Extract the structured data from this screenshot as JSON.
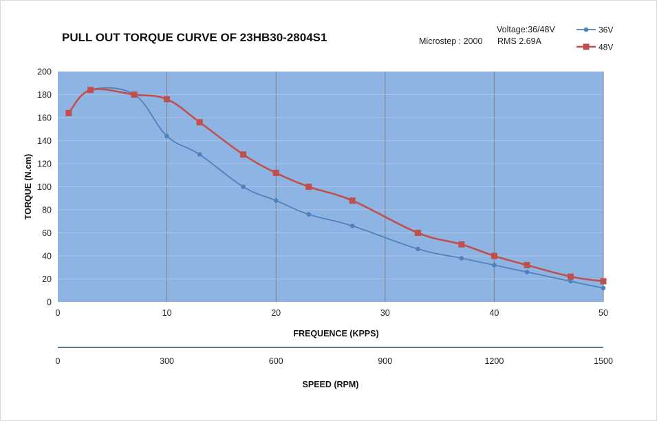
{
  "chart_data": {
    "type": "line",
    "title": "PULL OUT TORQUE CURVE OF 23HB30-2804S1",
    "annotations": {
      "voltage": "Voltage:36/48V",
      "microstep": "Microstep : 2000",
      "rms": "RMS 2.69A"
    },
    "xlabel": "FREQUENCE (KPPS)",
    "ylabel": "TORQUE (N.cm)",
    "xlim": [
      0,
      50
    ],
    "ylim": [
      0,
      200
    ],
    "x_ticks": [
      "0",
      "10",
      "20",
      "30",
      "40",
      "50"
    ],
    "y_ticks": [
      "0",
      "20",
      "40",
      "60",
      "80",
      "100",
      "120",
      "140",
      "160",
      "180",
      "200"
    ],
    "secondary_axis": {
      "label": "SPEED (RPM)",
      "ticks": [
        "0",
        "300",
        "600",
        "900",
        "1200",
        "1500"
      ]
    },
    "grid": "vertical",
    "legend_position": "top-right",
    "background_color": "#8eb4e3",
    "series": [
      {
        "name": "36V",
        "color": "#4f81bd",
        "marker": "circle",
        "points": [
          [
            1,
            164
          ],
          [
            3,
            184
          ],
          [
            7,
            180
          ],
          [
            10,
            144
          ],
          [
            13,
            128
          ],
          [
            17,
            100
          ],
          [
            20,
            88
          ],
          [
            23,
            76
          ],
          [
            27,
            66
          ],
          [
            33,
            46
          ],
          [
            37,
            38
          ],
          [
            40,
            32
          ],
          [
            43,
            26
          ],
          [
            47,
            18
          ],
          [
            50,
            12
          ]
        ]
      },
      {
        "name": "48V",
        "color": "#c0504d",
        "marker": "square",
        "points": [
          [
            1,
            164
          ],
          [
            3,
            184
          ],
          [
            7,
            180
          ],
          [
            10,
            176
          ],
          [
            13,
            156
          ],
          [
            17,
            128
          ],
          [
            20,
            112
          ],
          [
            23,
            100
          ],
          [
            27,
            88
          ],
          [
            33,
            60
          ],
          [
            37,
            50
          ],
          [
            40,
            40
          ],
          [
            43,
            32
          ],
          [
            47,
            22
          ],
          [
            50,
            18
          ]
        ]
      }
    ]
  }
}
